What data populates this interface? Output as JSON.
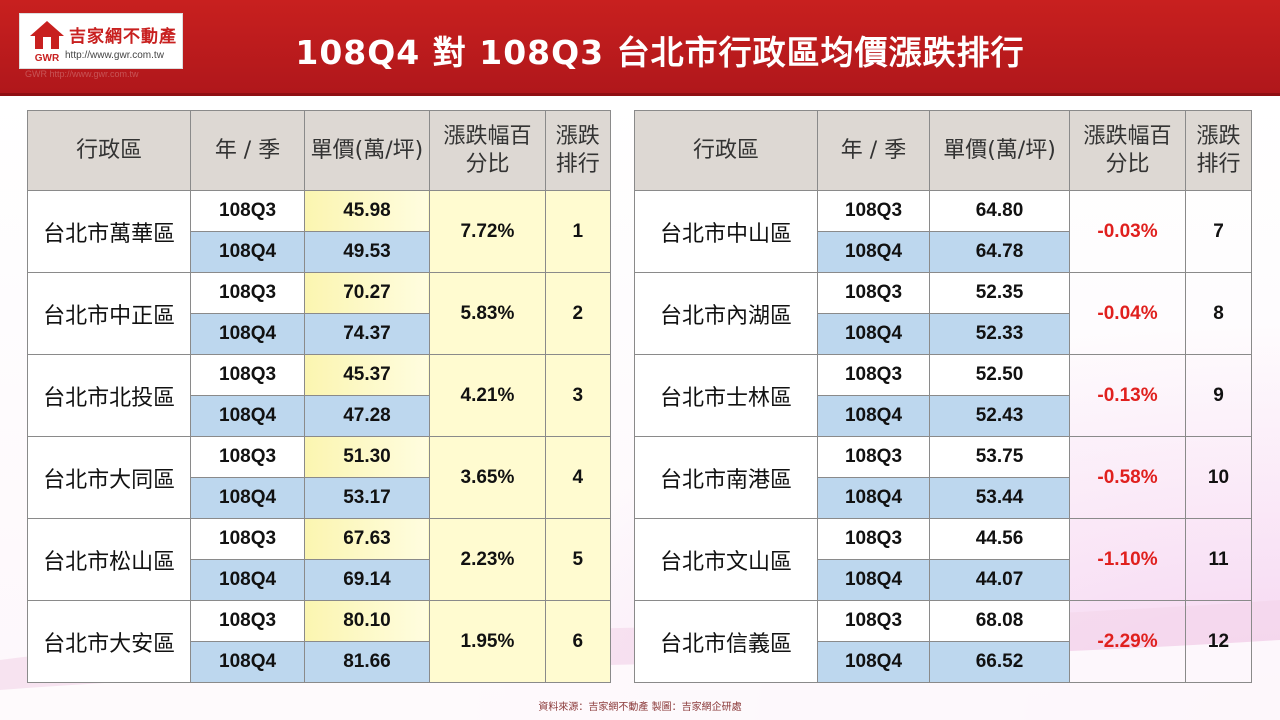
{
  "header": {
    "title": "108Q4 對 108Q3 台北市行政區均價漲跌排行",
    "logo_name": "吉家網不動產",
    "logo_abbr": "GWR",
    "logo_url": "http://www.gwr.com.tw",
    "logo_sub": "GWR  http://www.gwr.com.tw"
  },
  "columns": {
    "district": "行政區",
    "period": "年 / 季",
    "price": "單價(萬/坪)",
    "change_line1": "漲跌幅百",
    "change_line2": "分比",
    "rank_line1": "漲跌",
    "rank_line2": "排行"
  },
  "left_table": [
    {
      "district": "台北市萬華區",
      "q3": "108Q3",
      "q4": "108Q4",
      "p3": "45.98",
      "p4": "49.53",
      "change": "7.72%",
      "rank": "1"
    },
    {
      "district": "台北市中正區",
      "q3": "108Q3",
      "q4": "108Q4",
      "p3": "70.27",
      "p4": "74.37",
      "change": "5.83%",
      "rank": "2"
    },
    {
      "district": "台北市北投區",
      "q3": "108Q3",
      "q4": "108Q4",
      "p3": "45.37",
      "p4": "47.28",
      "change": "4.21%",
      "rank": "3"
    },
    {
      "district": "台北市大同區",
      "q3": "108Q3",
      "q4": "108Q4",
      "p3": "51.30",
      "p4": "53.17",
      "change": "3.65%",
      "rank": "4"
    },
    {
      "district": "台北市松山區",
      "q3": "108Q3",
      "q4": "108Q4",
      "p3": "67.63",
      "p4": "69.14",
      "change": "2.23%",
      "rank": "5"
    },
    {
      "district": "台北市大安區",
      "q3": "108Q3",
      "q4": "108Q4",
      "p3": "80.10",
      "p4": "81.66",
      "change": "1.95%",
      "rank": "6"
    }
  ],
  "right_table": [
    {
      "district": "台北市中山區",
      "q3": "108Q3",
      "q4": "108Q4",
      "p3": "64.80",
      "p4": "64.78",
      "change": "-0.03%",
      "rank": "7"
    },
    {
      "district": "台北市內湖區",
      "q3": "108Q3",
      "q4": "108Q4",
      "p3": "52.35",
      "p4": "52.33",
      "change": "-0.04%",
      "rank": "8"
    },
    {
      "district": "台北市士林區",
      "q3": "108Q3",
      "q4": "108Q4",
      "p3": "52.50",
      "p4": "52.43",
      "change": "-0.13%",
      "rank": "9"
    },
    {
      "district": "台北市南港區",
      "q3": "108Q3",
      "q4": "108Q4",
      "p3": "53.75",
      "p4": "53.44",
      "change": "-0.58%",
      "rank": "10"
    },
    {
      "district": "台北市文山區",
      "q3": "108Q3",
      "q4": "108Q4",
      "p3": "44.56",
      "p4": "44.07",
      "change": "-1.10%",
      "rank": "11"
    },
    {
      "district": "台北市信義區",
      "q3": "108Q3",
      "q4": "108Q4",
      "p3": "68.08",
      "p4": "66.52",
      "change": "-2.29%",
      "rank": "12"
    }
  ],
  "footer": "資料來源：吉家網不動產  製圖：吉家網企研處",
  "colors": {
    "header_red": "#c8201f",
    "header_bg": "#ddd8d3",
    "q4_blue": "#bdd7ee",
    "up_yellow": "#fffbd0",
    "down_red": "#e0201e"
  }
}
